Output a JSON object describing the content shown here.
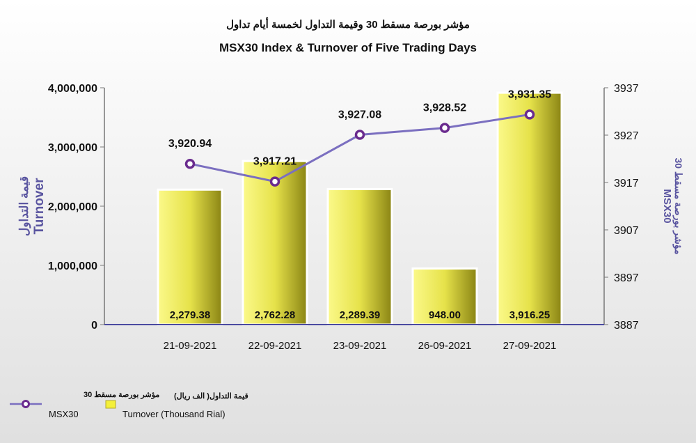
{
  "colors": {
    "bar_light": "#fbf98a",
    "bar_dark": "#8a8414",
    "line": "#7b6fc0",
    "marker_stroke": "#6a2b8e",
    "axis_title": "#5a55a0",
    "base_axis": "#4a4aa0",
    "background_top": "#ffffff",
    "background_bottom": "#e0e0e0"
  },
  "chart_data": {
    "type": "bar",
    "title_ar": "مؤشر بورصة مسقط 30 وقيمة التداول لخمسة أيام تداول",
    "title": "MSX30 Index & Turnover of Five Trading Days",
    "categories": [
      "21-09-2021",
      "22-09-2021",
      "23-09-2021",
      "26-09-2021",
      "27-09-2021"
    ],
    "series": [
      {
        "name": "Turnover (Thousand Rial)",
        "name_ar": "قيمة التداول( الف ريال)",
        "kind": "bar",
        "axis": "left",
        "values": [
          2279380,
          2762280,
          2289390,
          948000,
          3916250
        ],
        "labels": [
          "2,279.38",
          "2,762.28",
          "2,289.39",
          "948.00",
          "3,916.25"
        ]
      },
      {
        "name": "MSX30",
        "name_ar": "مؤشر بورصة مسقط 30",
        "kind": "line",
        "axis": "right",
        "values": [
          3920.94,
          3917.21,
          3927.08,
          3928.52,
          3931.35
        ],
        "labels": [
          "3,920.94",
          "3,917.21",
          "3,927.08",
          "3,928.52",
          "3,931.35"
        ]
      }
    ],
    "y_left": {
      "label": "Turnover",
      "label_ar": "قيمة التداول",
      "ylim": [
        0,
        4000000
      ],
      "ticks": [
        "0",
        "1,000,000",
        "2,000,000",
        "3,000,000",
        "4,000,000"
      ]
    },
    "y_right": {
      "label": "MSX30",
      "label_ar": "مؤشر بورصة مسقط 30",
      "ylim": [
        3887,
        3937
      ],
      "ticks": [
        "3887",
        "3897",
        "3907",
        "3917",
        "3927",
        "3937"
      ]
    },
    "grid": false,
    "legend_position": "bottom-left"
  }
}
